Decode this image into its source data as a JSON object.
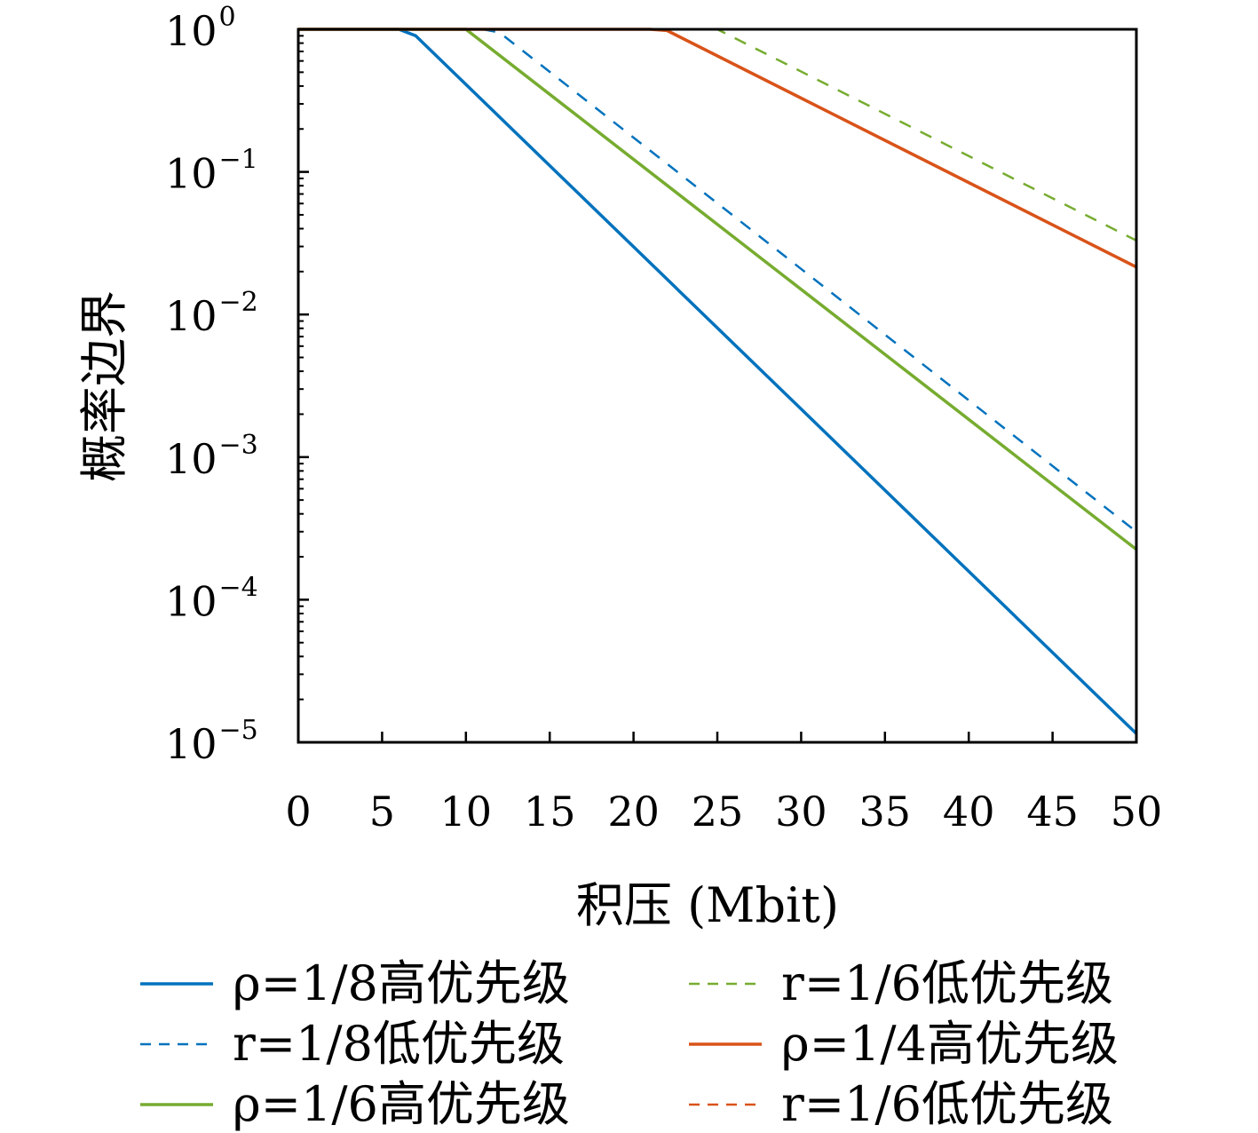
{
  "chart_data": {
    "type": "line",
    "xlabel": "积压 (Mbit)",
    "ylabel": "概率边界",
    "xlim": [
      0,
      50
    ],
    "ylim": [
      1e-05,
      1
    ],
    "yscale": "log",
    "x_ticks": [
      "0",
      "5",
      "10",
      "15",
      "20",
      "25",
      "30",
      "35",
      "40",
      "45",
      "50"
    ],
    "y_ticks": [
      {
        "value": 1,
        "base": "10",
        "exp": "0"
      },
      {
        "value": 0.1,
        "base": "10",
        "exp": "−1"
      },
      {
        "value": 0.01,
        "base": "10",
        "exp": "−2"
      },
      {
        "value": 0.001,
        "base": "10",
        "exp": "−3"
      },
      {
        "value": 0.0001,
        "base": "10",
        "exp": "−4"
      },
      {
        "value": 1e-05,
        "base": "10",
        "exp": "−5"
      }
    ],
    "grid": false,
    "legend_position": "bottom",
    "series": [
      {
        "name": "ρ=1/8高优先级",
        "color": "#0072BD",
        "dash": "solid",
        "x": [
          0,
          6,
          7,
          50
        ],
        "y": [
          1,
          1,
          0.9,
          1.15e-05
        ]
      },
      {
        "name": "r=1/8低优先级",
        "color": "#0072BD",
        "dash": "dashed",
        "x": [
          0,
          11,
          12,
          50
        ],
        "y": [
          1,
          1,
          0.95,
          0.0003
        ]
      },
      {
        "name": "ρ=1/6高优先级",
        "color": "#77AC30",
        "dash": "solid",
        "x": [
          0,
          10,
          50
        ],
        "y": [
          1,
          1,
          0.000225
        ]
      },
      {
        "name": "r=1/6低优先级",
        "color": "#77AC30",
        "dash": "dashed",
        "x": [
          0,
          25,
          50
        ],
        "y": [
          1,
          1,
          0.033
        ]
      },
      {
        "name": "ρ=1/4高优先级",
        "color": "#D95319",
        "dash": "solid",
        "x": [
          0,
          21,
          22,
          50
        ],
        "y": [
          1,
          1,
          0.98,
          0.0215
        ]
      },
      {
        "name": "r=1/6低优先级",
        "color": "#D95319",
        "dash": "dashed",
        "x": [
          0,
          50
        ],
        "y": [
          1,
          1
        ]
      }
    ]
  }
}
